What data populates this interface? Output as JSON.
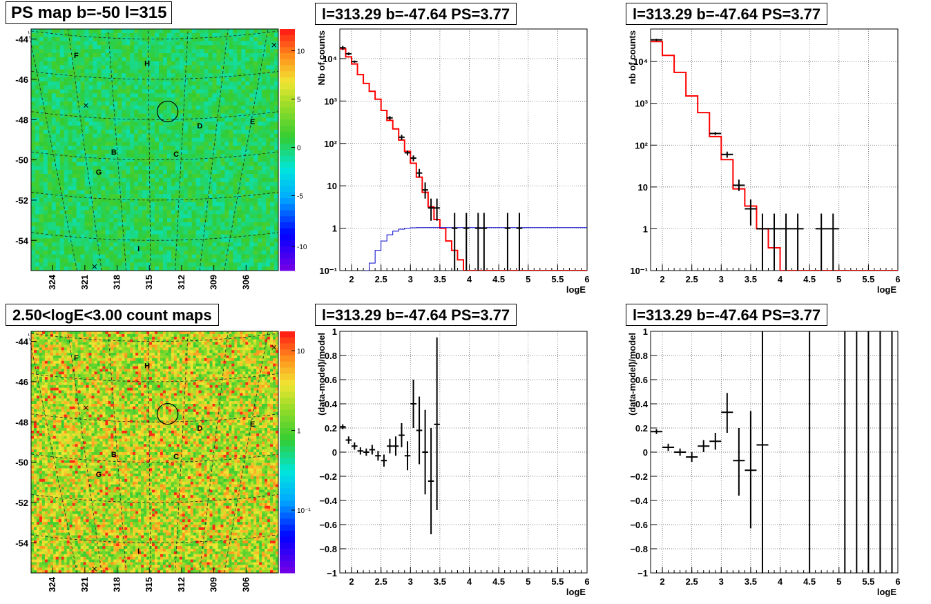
{
  "titles": {
    "map_top": "PS map b=-50 l=315",
    "map_bottom": "2.50<logE<3.00 count maps",
    "spec1": "l=313.29 b=-47.64 PS=3.77",
    "spec2": "l=313.29 b=-47.64 PS=3.77",
    "res1": "l=313.29 b=-47.64 PS=3.77",
    "res2": "l=313.29 b=-47.64 PS=3.77"
  },
  "colors": {
    "model_line": "#ff0000",
    "background_line": "#0000cc",
    "data_marker": "#000000",
    "map_top_base": "#33cc33",
    "map_bottom_base": "#ee9933"
  },
  "chart_data": [
    {
      "id": "map_top",
      "type": "heatmap",
      "title": "PS map b=-50 l=315",
      "colorscale": "rainbow",
      "xlim": [
        326,
        303
      ],
      "ylim": [
        -55.5,
        -43.5
      ],
      "x_ticks": [
        "324",
        "321",
        "318",
        "315",
        "312",
        "309",
        "306"
      ],
      "y_ticks": [
        "-44",
        "-46",
        "-48",
        "-50",
        "-52",
        "-54"
      ],
      "colorbar_ticks": [
        "10",
        "5",
        "0",
        "-5",
        "-10"
      ],
      "source_labels": [
        {
          "label": "F",
          "l": 321.8,
          "b": -44.8
        },
        {
          "label": "H",
          "l": 315.2,
          "b": -45.2
        },
        {
          "label": "D",
          "l": 310.3,
          "b": -48.3
        },
        {
          "label": "E",
          "l": 305.4,
          "b": -48.1
        },
        {
          "label": "B",
          "l": 318.3,
          "b": -49.6
        },
        {
          "label": "C",
          "l": 312.5,
          "b": -49.7
        },
        {
          "label": "G",
          "l": 319.7,
          "b": -50.6
        },
        {
          "label": "I",
          "l": 316.0,
          "b": -54.4
        }
      ],
      "crosses": [
        {
          "l": 320.9,
          "b": -47.3
        },
        {
          "l": 320.1,
          "b": -55.3
        },
        {
          "l": 303.4,
          "b": -44.3
        }
      ],
      "circle": {
        "l": 313.3,
        "b": -47.6
      }
    },
    {
      "id": "map_bottom",
      "type": "heatmap",
      "title": "2.50<logE<3.00 count maps",
      "colorscale": "rainbow-log",
      "xlim": [
        326,
        303
      ],
      "ylim": [
        -55.5,
        -43.5
      ],
      "x_ticks": [
        "324",
        "321",
        "318",
        "315",
        "312",
        "309",
        "306"
      ],
      "y_ticks": [
        "-44",
        "-46",
        "-48",
        "-50",
        "-52",
        "-54"
      ],
      "colorbar_ticks": [
        "10",
        "1",
        "10⁻¹"
      ],
      "source_labels": [
        {
          "label": "F",
          "l": 321.8,
          "b": -44.8
        },
        {
          "label": "H",
          "l": 315.2,
          "b": -45.2
        },
        {
          "label": "D",
          "l": 310.3,
          "b": -48.3
        },
        {
          "label": "E",
          "l": 305.4,
          "b": -48.1
        },
        {
          "label": "B",
          "l": 318.3,
          "b": -49.6
        },
        {
          "label": "C",
          "l": 312.5,
          "b": -49.7
        },
        {
          "label": "G",
          "l": 319.7,
          "b": -50.6
        },
        {
          "label": "I",
          "l": 316.0,
          "b": -54.4
        }
      ],
      "crosses": [
        {
          "l": 320.9,
          "b": -47.3
        },
        {
          "l": 320.1,
          "b": -55.3
        },
        {
          "l": 303.4,
          "b": -44.3
        }
      ],
      "circle": {
        "l": 313.3,
        "b": -47.6
      }
    },
    {
      "id": "spec1",
      "type": "line",
      "title": "l=313.29 b=-47.64 PS=3.77",
      "xlabel": "logE",
      "ylabel": "Nb of counts",
      "xlim": [
        1.8,
        6
      ],
      "ylim": [
        0.1,
        50000
      ],
      "yscale": "log",
      "x_ticks": [
        "2",
        "2.5",
        "3",
        "3.5",
        "4",
        "4.5",
        "5",
        "5.5",
        "6"
      ],
      "y_ticks": [
        "10⁻¹",
        "1",
        "10",
        "10²",
        "10³",
        "10⁴"
      ],
      "series": [
        {
          "kind": "model-step",
          "color": "#ff0000",
          "edges": [
            1.8,
            1.9,
            2.0,
            2.1,
            2.2,
            2.3,
            2.4,
            2.5,
            2.6,
            2.7,
            2.8,
            2.9,
            3.0,
            3.1,
            3.2,
            3.3,
            3.4,
            3.5,
            3.6,
            3.7,
            3.8,
            3.9,
            4.0,
            6.0
          ],
          "values": [
            17000,
            11000,
            7500,
            4200,
            2600,
            1700,
            1100,
            600,
            350,
            220,
            120,
            65,
            34,
            16,
            7,
            3.2,
            1.6,
            1.0,
            0.5,
            0.3,
            0.18,
            0.1,
            0.1
          ]
        },
        {
          "kind": "background-step",
          "color": "#0000cc",
          "edges": [
            2.2,
            2.3,
            2.4,
            2.5,
            2.6,
            2.7,
            2.8,
            2.9,
            3.0,
            3.1,
            6.0
          ],
          "values": [
            0.1,
            0.15,
            0.3,
            0.5,
            0.7,
            0.85,
            0.95,
            1.0,
            1.02,
            1.03
          ]
        }
      ],
      "points": [
        {
          "x": 1.85,
          "y": 18000,
          "xerr": 0.05,
          "ylo": 16000,
          "yhi": 20000
        },
        {
          "x": 1.95,
          "y": 13000,
          "xerr": 0.05,
          "ylo": 12000,
          "yhi": 14000
        },
        {
          "x": 2.05,
          "y": 8500,
          "xerr": 0.05,
          "ylo": 8000,
          "yhi": 9000
        },
        {
          "x": 2.65,
          "y": 400,
          "xerr": 0.05,
          "ylo": 360,
          "yhi": 440
        },
        {
          "x": 2.85,
          "y": 140,
          "xerr": 0.05,
          "ylo": 120,
          "yhi": 160
        },
        {
          "x": 2.95,
          "y": 60,
          "xerr": 0.05,
          "ylo": 52,
          "yhi": 68
        },
        {
          "x": 3.05,
          "y": 45,
          "xerr": 0.05,
          "ylo": 38,
          "yhi": 52
        },
        {
          "x": 3.15,
          "y": 20,
          "xerr": 0.05,
          "ylo": 16,
          "yhi": 25
        },
        {
          "x": 3.25,
          "y": 8,
          "xerr": 0.05,
          "ylo": 5,
          "yhi": 12
        },
        {
          "x": 3.35,
          "y": 3,
          "xerr": 0.05,
          "ylo": 1.5,
          "yhi": 5
        },
        {
          "x": 3.45,
          "y": 3,
          "xerr": 0.05,
          "ylo": 1.5,
          "yhi": 5
        },
        {
          "x": 3.75,
          "y": 1,
          "xerr": 0.05,
          "ylo": 0.1,
          "yhi": 2.3
        },
        {
          "x": 3.95,
          "y": 1,
          "xerr": 0.05,
          "ylo": 0.1,
          "yhi": 2.3
        },
        {
          "x": 4.15,
          "y": 1,
          "xerr": 0.05,
          "ylo": 0.1,
          "yhi": 2.3
        },
        {
          "x": 4.25,
          "y": 1,
          "xerr": 0.05,
          "ylo": 0.1,
          "yhi": 2.3
        },
        {
          "x": 4.65,
          "y": 1,
          "xerr": 0.05,
          "ylo": 0.1,
          "yhi": 2.3
        },
        {
          "x": 4.85,
          "y": 1,
          "xerr": 0.05,
          "ylo": 0.1,
          "yhi": 2.3
        }
      ]
    },
    {
      "id": "spec2",
      "type": "line",
      "title": "l=313.29 b=-47.64 PS=3.77",
      "xlabel": "logE",
      "ylabel": "nb of counts",
      "xlim": [
        1.8,
        6
      ],
      "ylim": [
        0.1,
        60000
      ],
      "yscale": "log",
      "x_ticks": [
        "2",
        "2.5",
        "3",
        "3.5",
        "4",
        "4.5",
        "5",
        "5.5",
        "6"
      ],
      "y_ticks": [
        "10⁻¹",
        "1",
        "10",
        "10²",
        "10³",
        "10⁴"
      ],
      "series": [
        {
          "kind": "model-step",
          "color": "#ff0000",
          "edges": [
            1.8,
            2.0,
            2.2,
            2.4,
            2.6,
            2.8,
            3.0,
            3.2,
            3.4,
            3.6,
            3.8,
            4.0,
            6.0
          ],
          "values": [
            30000,
            14000,
            5500,
            1500,
            600,
            160,
            45,
            9,
            3.5,
            1.0,
            0.35,
            0.1
          ]
        }
      ],
      "points": [
        {
          "x": 1.9,
          "y": 33000,
          "xerr": 0.1,
          "ylo": 31000,
          "yhi": 35000
        },
        {
          "x": 2.9,
          "y": 190,
          "xerr": 0.1,
          "ylo": 175,
          "yhi": 205
        },
        {
          "x": 3.1,
          "y": 60,
          "xerr": 0.1,
          "ylo": 50,
          "yhi": 70
        },
        {
          "x": 3.3,
          "y": 11,
          "xerr": 0.1,
          "ylo": 8,
          "yhi": 15
        },
        {
          "x": 3.5,
          "y": 3,
          "xerr": 0.1,
          "ylo": 1.2,
          "yhi": 5
        },
        {
          "x": 3.7,
          "y": 1,
          "xerr": 0.1,
          "ylo": 0.1,
          "yhi": 2.3
        },
        {
          "x": 3.9,
          "y": 1,
          "xerr": 0.1,
          "ylo": 0.1,
          "yhi": 2.3
        },
        {
          "x": 4.1,
          "y": 1,
          "xerr": 0.1,
          "ylo": 0.1,
          "yhi": 2.3
        },
        {
          "x": 4.3,
          "y": 1,
          "xerr": 0.1,
          "ylo": 0.1,
          "yhi": 2.3
        },
        {
          "x": 4.7,
          "y": 1,
          "xerr": 0.1,
          "ylo": 0.1,
          "yhi": 2.3
        },
        {
          "x": 4.9,
          "y": 1,
          "xerr": 0.1,
          "ylo": 0.1,
          "yhi": 2.3
        }
      ]
    },
    {
      "id": "res1",
      "type": "scatter",
      "title": "l=313.29 b=-47.64 PS=3.77",
      "xlabel": "logE",
      "ylabel": "(data-model)/model",
      "xlim": [
        1.8,
        6
      ],
      "ylim": [
        -1,
        1
      ],
      "x_ticks": [
        "2",
        "2.5",
        "3",
        "3.5",
        "4",
        "4.5",
        "5",
        "5.5",
        "6"
      ],
      "y_ticks": [
        "1",
        "0.8",
        "0.6",
        "0.4",
        "0.2",
        "0",
        "−0.2",
        "−0.4",
        "−0.6",
        "−0.8",
        "−1"
      ],
      "points": [
        {
          "x": 1.85,
          "y": 0.21,
          "xerr": 0.05,
          "ylo": 0.19,
          "yhi": 0.23
        },
        {
          "x": 1.95,
          "y": 0.1,
          "xerr": 0.05,
          "ylo": 0.07,
          "yhi": 0.13
        },
        {
          "x": 2.05,
          "y": 0.05,
          "xerr": 0.05,
          "ylo": 0.02,
          "yhi": 0.08
        },
        {
          "x": 2.15,
          "y": 0.01,
          "xerr": 0.05,
          "ylo": -0.02,
          "yhi": 0.04
        },
        {
          "x": 2.25,
          "y": 0.0,
          "xerr": 0.05,
          "ylo": -0.03,
          "yhi": 0.03
        },
        {
          "x": 2.35,
          "y": 0.02,
          "xerr": 0.05,
          "ylo": -0.02,
          "yhi": 0.06
        },
        {
          "x": 2.45,
          "y": -0.03,
          "xerr": 0.05,
          "ylo": -0.07,
          "yhi": 0.01
        },
        {
          "x": 2.55,
          "y": -0.07,
          "xerr": 0.05,
          "ylo": -0.12,
          "yhi": -0.02
        },
        {
          "x": 2.65,
          "y": 0.05,
          "xerr": 0.05,
          "ylo": -0.01,
          "yhi": 0.11
        },
        {
          "x": 2.75,
          "y": 0.05,
          "xerr": 0.05,
          "ylo": -0.03,
          "yhi": 0.13
        },
        {
          "x": 2.85,
          "y": 0.14,
          "xerr": 0.05,
          "ylo": 0.04,
          "yhi": 0.24
        },
        {
          "x": 2.95,
          "y": -0.03,
          "xerr": 0.05,
          "ylo": -0.15,
          "yhi": 0.09
        },
        {
          "x": 3.05,
          "y": 0.4,
          "xerr": 0.05,
          "ylo": 0.2,
          "yhi": 0.6
        },
        {
          "x": 3.15,
          "y": 0.18,
          "xerr": 0.05,
          "ylo": -0.1,
          "yhi": 0.46
        },
        {
          "x": 3.25,
          "y": 0.0,
          "xerr": 0.05,
          "ylo": -0.35,
          "yhi": 0.35
        },
        {
          "x": 3.35,
          "y": -0.24,
          "xerr": 0.05,
          "ylo": -0.68,
          "yhi": 0.2
        },
        {
          "x": 3.45,
          "y": 0.23,
          "xerr": 0.05,
          "ylo": -0.48,
          "yhi": 0.95
        }
      ]
    },
    {
      "id": "res2",
      "type": "scatter",
      "title": "l=313.29 b=-47.64 PS=3.77",
      "xlabel": "logE",
      "ylabel": "(data-model)/model",
      "xlim": [
        1.8,
        6
      ],
      "ylim": [
        -1,
        1
      ],
      "x_ticks": [
        "2",
        "2.5",
        "3",
        "3.5",
        "4",
        "4.5",
        "5",
        "5.5",
        "6"
      ],
      "y_ticks": [
        "1",
        "0.8",
        "0.6",
        "0.4",
        "0.2",
        "0",
        "−0.2",
        "−0.4",
        "−0.6",
        "−0.8",
        "−1"
      ],
      "points": [
        {
          "x": 1.9,
          "y": 0.17,
          "xerr": 0.1,
          "ylo": 0.15,
          "yhi": 0.19
        },
        {
          "x": 2.1,
          "y": 0.04,
          "xerr": 0.1,
          "ylo": 0.01,
          "yhi": 0.07
        },
        {
          "x": 2.3,
          "y": 0.0,
          "xerr": 0.1,
          "ylo": -0.03,
          "yhi": 0.03
        },
        {
          "x": 2.5,
          "y": -0.04,
          "xerr": 0.1,
          "ylo": -0.08,
          "yhi": 0.0
        },
        {
          "x": 2.7,
          "y": 0.05,
          "xerr": 0.1,
          "ylo": 0.0,
          "yhi": 0.1
        },
        {
          "x": 2.9,
          "y": 0.09,
          "xerr": 0.1,
          "ylo": 0.02,
          "yhi": 0.16
        },
        {
          "x": 3.1,
          "y": 0.33,
          "xerr": 0.1,
          "ylo": 0.16,
          "yhi": 0.49
        },
        {
          "x": 3.3,
          "y": -0.07,
          "xerr": 0.1,
          "ylo": -0.36,
          "yhi": 0.2
        },
        {
          "x": 3.5,
          "y": -0.15,
          "xerr": 0.1,
          "ylo": -0.63,
          "yhi": 0.34
        },
        {
          "x": 3.7,
          "y": 0.06,
          "xerr": 0.1,
          "ylo": -1,
          "yhi": 1
        },
        {
          "x": 4.5,
          "y": 0,
          "xerr": 0,
          "ylo": -1,
          "yhi": 1
        },
        {
          "x": 5.1,
          "y": 0,
          "xerr": 0,
          "ylo": -1,
          "yhi": 1
        },
        {
          "x": 5.3,
          "y": 0,
          "xerr": 0,
          "ylo": -1,
          "yhi": 1
        },
        {
          "x": 5.5,
          "y": 0,
          "xerr": 0,
          "ylo": -1,
          "yhi": 1
        },
        {
          "x": 5.7,
          "y": 0,
          "xerr": 0,
          "ylo": -1,
          "yhi": 1
        },
        {
          "x": 5.9,
          "y": 0,
          "xerr": 0,
          "ylo": -1,
          "yhi": 1
        }
      ]
    }
  ]
}
